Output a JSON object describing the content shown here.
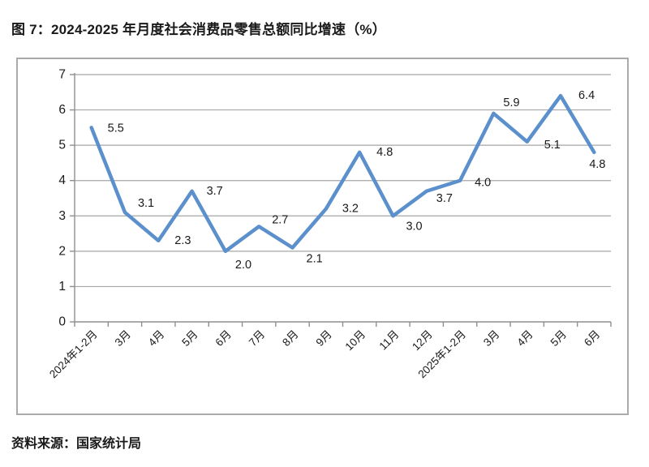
{
  "page": {
    "title": "图 7：2024-2025 年月度社会消费品零售总额同比增速（%）",
    "source": "资料来源：国家统计局"
  },
  "chart_data": {
    "type": "line",
    "categories": [
      "2024年1-2月",
      "3月",
      "4月",
      "5月",
      "6月",
      "7月",
      "8月",
      "9月",
      "10月",
      "11月",
      "12月",
      "2025年1-2月",
      "3月",
      "4月",
      "5月",
      "6月"
    ],
    "values": [
      5.5,
      3.1,
      2.3,
      3.7,
      2.0,
      2.7,
      2.1,
      3.2,
      4.8,
      3.0,
      3.7,
      4.0,
      5.9,
      5.1,
      6.4,
      4.8
    ],
    "title": "",
    "xlabel": "",
    "ylabel": "",
    "ylim": [
      0,
      7
    ],
    "yticks": [
      0,
      1,
      2,
      3,
      4,
      5,
      6,
      7
    ],
    "grid": "horizontal",
    "legend": "none",
    "data_labels": true,
    "label_decimals": 1,
    "line_color": "#5b90cd",
    "grid_color": "#a6a6a6",
    "axis_color": "#8f8f8f",
    "text_color": "#1a1a1a"
  }
}
